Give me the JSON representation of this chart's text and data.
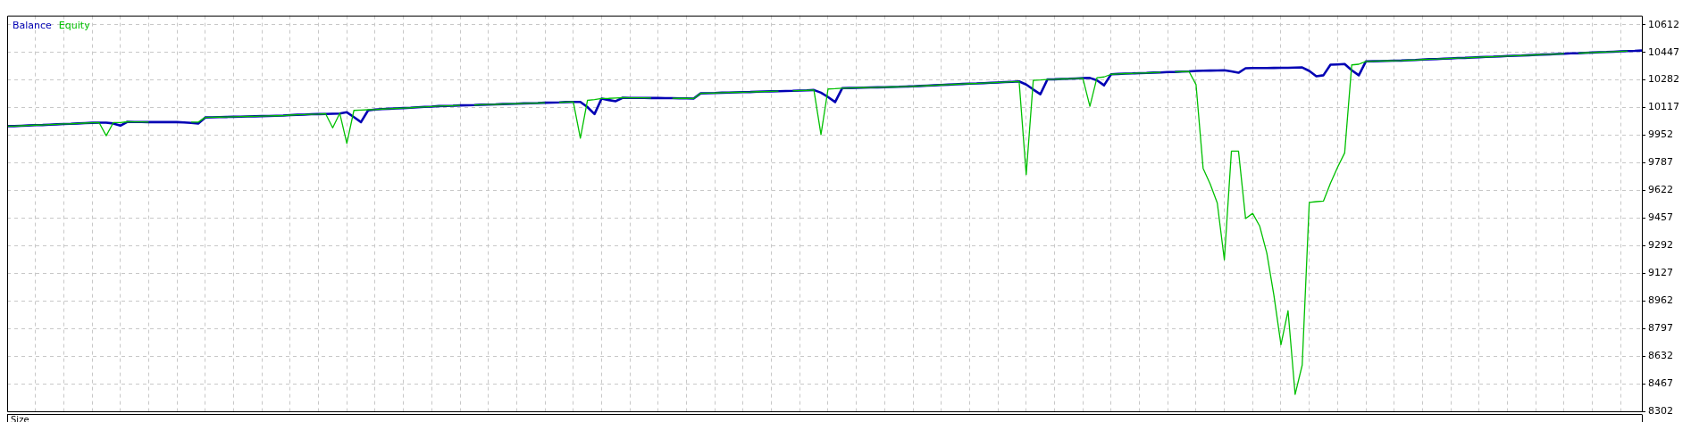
{
  "chart_data": {
    "type": "line",
    "categories": [
      null,
      null,
      null,
      null,
      null,
      null,
      null,
      null,
      null,
      null,
      null,
      null,
      null,
      null,
      null,
      null,
      null,
      null,
      null,
      null,
      null,
      null,
      null,
      null,
      null,
      null,
      null,
      null,
      null,
      null,
      null,
      null,
      null,
      null,
      null,
      null,
      null,
      null,
      null,
      null,
      null,
      null,
      null,
      null,
      null,
      null,
      null,
      null,
      null,
      null,
      null,
      null,
      null,
      null,
      null,
      null,
      null,
      null,
      null,
      null,
      null,
      null,
      null,
      null,
      null,
      null,
      null,
      null,
      null,
      null,
      null,
      null,
      null,
      null,
      null,
      null,
      null,
      null,
      null,
      null,
      null,
      null,
      null,
      null,
      null,
      null,
      null,
      null,
      null,
      null,
      null,
      null,
      null,
      null,
      null,
      null,
      null,
      null,
      null,
      null,
      null,
      null,
      null,
      null,
      null,
      null,
      null,
      null,
      null,
      null,
      null,
      null,
      null,
      null,
      null,
      null,
      null,
      null,
      null,
      null,
      null,
      null,
      null,
      null,
      null,
      null,
      null,
      null,
      null,
      null,
      null,
      null,
      null,
      null,
      null,
      null,
      null,
      null,
      null,
      null,
      null,
      null,
      null,
      null,
      null,
      null,
      null,
      null,
      null,
      null,
      null,
      null,
      null,
      null,
      null,
      null,
      null,
      null,
      null,
      null,
      null,
      null,
      null,
      null,
      null,
      null,
      null,
      null,
      null,
      null,
      null,
      null,
      null,
      null,
      null,
      null,
      null,
      null,
      null,
      null,
      null,
      null,
      null,
      null,
      null,
      null,
      null,
      null,
      null,
      null,
      null,
      null,
      null,
      null,
      null,
      null,
      null,
      null,
      null,
      null,
      null,
      null,
      null,
      null,
      null,
      null,
      null,
      null,
      null,
      null,
      null,
      null,
      null,
      null,
      null,
      null,
      null,
      null,
      null,
      null,
      null,
      null,
      null,
      null,
      null,
      null,
      null,
      null,
      null,
      null,
      null,
      null
    ],
    "series": [
      {
        "name": "Equity",
        "color": "#00c000",
        "values": [
          10006,
          10006,
          10008,
          10010,
          10012,
          10013,
          10015,
          10017,
          10019,
          10020,
          10022,
          10024,
          10026,
          10027,
          9949,
          10027,
          10027,
          10032,
          10031,
          10031,
          10030,
          null,
          null,
          null,
          null,
          null,
          10030,
          10030,
          10058,
          10059,
          10060,
          10061,
          10062,
          10063,
          10064,
          10065,
          10066,
          10067,
          10068,
          10069,
          10072,
          10074,
          10075,
          10077,
          10078,
          10080,
          9996,
          10083,
          9903,
          10100,
          10102,
          10104,
          10105,
          10108,
          10110,
          10112,
          10114,
          10116,
          10119,
          10121,
          10123,
          10126,
          10127,
          10128,
          10130,
          null,
          10132,
          10134,
          10135,
          10136,
          10138,
          10139,
          10140,
          10142,
          10143,
          10144,
          10146,
          null,
          10148,
          10150,
          10151,
          9934,
          10160,
          10165,
          10171,
          10172,
          10174,
          10176,
          10175,
          10175,
          10175,
          10174,
          null,
          null,
          10173,
          10172,
          10172,
          10171,
          10202,
          10203,
          10204,
          10206,
          10207,
          10208,
          10209,
          10210,
          10212,
          10213,
          10214,
          10215,
          null,
          10217,
          10219,
          10220,
          10222,
          9955,
          10228,
          10230,
          10233,
          10234,
          10235,
          10236,
          10237,
          10238,
          10239,
          10240,
          10241,
          10243,
          10244,
          10246,
          10248,
          10250,
          10252,
          10254,
          10256,
          10258,
          10260,
          10261,
          10263,
          10265,
          10267,
          10269,
          10271,
          10273,
          9717,
          10280,
          10282,
          10285,
          10286,
          10288,
          10289,
          10291,
          10293,
          10125,
          10295,
          10300,
          10316,
          10318,
          10320,
          10321,
          10323,
          10324,
          10326,
          10327,
          null,
          10330,
          10332,
          10333,
          10254,
          9754,
          9660,
          9547,
          9207,
          9857,
          9857,
          9454,
          9485,
          9408,
          9248,
          8996,
          8700,
          8903,
          8403,
          8578,
          9550,
          9555,
          9558,
          9666,
          9760,
          9846,
          10372,
          10376,
          10393,
          10394,
          10395,
          10396,
          10397,
          10398,
          10400,
          10401,
          10404,
          10406,
          10407,
          10409,
          10411,
          10413,
          10414,
          10416,
          10418,
          10420,
          10421,
          10423,
          10425,
          10427,
          10428,
          10430,
          10432,
          10434,
          10435,
          10437,
          10439,
          null,
          10442,
          10444,
          10446,
          10448,
          10449,
          10451,
          10453,
          10455,
          null,
          null
        ]
      },
      {
        "name": "Balance",
        "color": "#0000b4",
        "values": [
          10006,
          10006,
          10008,
          10010,
          10012,
          10013,
          10015,
          10017,
          10019,
          10020,
          10022,
          10024,
          10026,
          10027,
          10027,
          10022,
          10009,
          10032,
          10031,
          10031,
          10030,
          10030,
          10030,
          10030,
          10030,
          10028,
          10025,
          10022,
          10058,
          10059,
          10060,
          10061,
          10062,
          10063,
          10064,
          10065,
          10066,
          10067,
          10068,
          10069,
          10072,
          10074,
          10075,
          10077,
          10078,
          10079,
          10080,
          10081,
          10089,
          10060,
          10030,
          10100,
          10105,
          10108,
          10110,
          10112,
          10114,
          10116,
          10119,
          10121,
          10123,
          10126,
          10127,
          10128,
          10130,
          10131,
          10132,
          10134,
          10135,
          10136,
          10138,
          10139,
          10140,
          10142,
          10143,
          10144,
          10146,
          10147,
          10148,
          10150,
          10151,
          10151,
          10120,
          10078,
          10171,
          10162,
          10155,
          10176,
          10175,
          10175,
          10175,
          10174,
          10174,
          10173,
          10173,
          10172,
          10172,
          10171,
          10202,
          10203,
          10204,
          10206,
          10207,
          10208,
          10209,
          10210,
          10212,
          10213,
          10214,
          10215,
          10216,
          10217,
          10219,
          10220,
          10222,
          10206,
          10180,
          10150,
          10233,
          10234,
          10235,
          10236,
          10237,
          10238,
          10239,
          10240,
          10241,
          10243,
          10244,
          10246,
          10248,
          10250,
          10252,
          10254,
          10256,
          10258,
          10260,
          10261,
          10263,
          10265,
          10267,
          10269,
          10271,
          10273,
          10255,
          10225,
          10197,
          10285,
          10286,
          10288,
          10289,
          10291,
          10293,
          10294,
          10280,
          10250,
          10316,
          10318,
          10320,
          10321,
          10323,
          10324,
          10326,
          10327,
          10329,
          10330,
          10332,
          10333,
          10336,
          10337,
          10338,
          10339,
          10340,
          10333,
          10325,
          10352,
          10353,
          10353,
          10353,
          10354,
          10355,
          10355,
          10356,
          10357,
          10336,
          10304,
          10310,
          10373,
          10375,
          10377,
          10340,
          10310,
          10393,
          10394,
          10395,
          10396,
          10397,
          10398,
          10400,
          10401,
          10404,
          10406,
          10407,
          10409,
          10411,
          10413,
          10414,
          10416,
          10418,
          10420,
          10421,
          10423,
          10425,
          10427,
          10428,
          10430,
          10432,
          10434,
          10435,
          10437,
          10439,
          10441,
          10442,
          10444,
          10446,
          10448,
          10449,
          10451,
          10453,
          10455,
          10456,
          10458
        ]
      }
    ],
    "ylim": [
      8302,
      10666
    ],
    "yticks": [
      8302,
      8467,
      8632,
      8797,
      8962,
      9127,
      9292,
      9457,
      9622,
      9787,
      9952,
      10117,
      10282,
      10447,
      10612
    ],
    "tick_labels": "y",
    "grid": true,
    "marker": "none",
    "line_style": "solid",
    "annotations": [
      "Size"
    ]
  }
}
